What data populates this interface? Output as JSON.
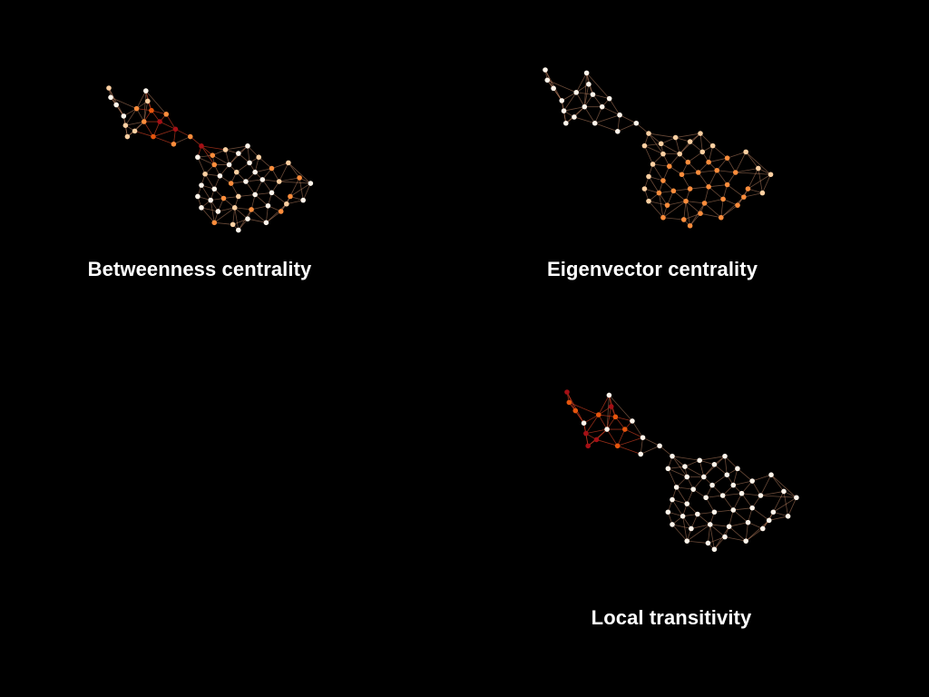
{
  "slide": {
    "background": "#000000"
  },
  "node_color_scale": [
    "#fff5eb",
    "#fdd0a2",
    "#fd8d3c",
    "#e6550d",
    "#a50f15"
  ],
  "edge_color": "#e8a27a",
  "panels": [
    {
      "id": "betweenness",
      "caption": "Betweenness centrality"
    },
    {
      "id": "eigenvector",
      "caption": "Eigenvector centrality"
    },
    {
      "id": "transitivity",
      "caption": "Local transitivity"
    }
  ]
}
